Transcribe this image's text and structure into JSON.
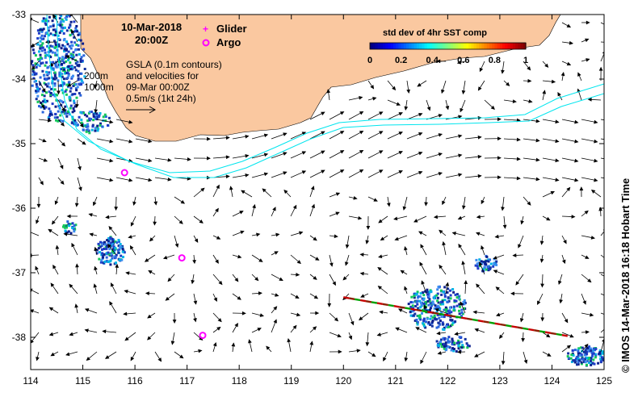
{
  "header": {
    "date": "10-Mar-2018",
    "time": "20:00Z"
  },
  "legend": {
    "glider_label": "Glider",
    "argo_label": "Argo",
    "glider_color": "#ff00ff",
    "argo_color": "#ff00ff"
  },
  "contour_labels": {
    "c200": "200m",
    "c1000": "1000m"
  },
  "gsla_note": {
    "line1": "GSLA (0.1m contours)",
    "line2": "and velocities for",
    "line3": "09-Mar 00:00Z",
    "line4": "0.5m/s (1kt 24h)"
  },
  "colorbar": {
    "title": "std dev of 4hr SST comp",
    "ticks": [
      "0",
      "0.2",
      "0.4",
      "0.6",
      "0.8",
      "1"
    ],
    "range": [
      0,
      1
    ]
  },
  "axes": {
    "x_ticks": [
      "114",
      "115",
      "116",
      "117",
      "118",
      "119",
      "120",
      "121",
      "122",
      "123",
      "124",
      "125"
    ],
    "y_ticks": [
      "-33",
      "-34",
      "-35",
      "-36",
      "-37",
      "-38"
    ],
    "lon_range": [
      114,
      125
    ],
    "lat_range": [
      -38.5,
      -33
    ]
  },
  "credit": "© IMOS 14-Mar-2018 16:18 Hobart Time",
  "colors": {
    "land": "#fac8a0",
    "contour": "#00e5ee",
    "arrow": "#000000"
  },
  "argo_floats": [
    {
      "lon": 115.8,
      "lat": -35.45
    },
    {
      "lon": 116.9,
      "lat": -36.77
    },
    {
      "lon": 117.3,
      "lat": -37.97
    }
  ],
  "glider_track": {
    "start": [
      120.0,
      -37.38
    ],
    "end": [
      124.3,
      -37.98
    ]
  }
}
